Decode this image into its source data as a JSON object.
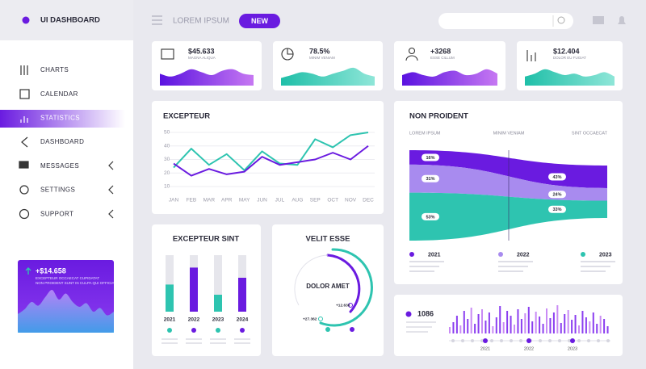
{
  "sidebar": {
    "title": "UI DASHBOARD",
    "menu": [
      "CHARTS",
      "CALENDAR",
      "STATISTICS",
      "DASHBOARD",
      "MESSAGES",
      "SETTINGS",
      "SUPPORT"
    ],
    "promo": {
      "value": "+$14.658",
      "lines": [
        "EXCEPTEUR OCCAECAT CUPIDATAT",
        "NON PROIDENT SUNT IN CULPA QUI OFFICIA"
      ],
      "area": [
        10,
        14,
        20,
        17,
        24,
        30,
        22,
        27,
        20,
        16,
        19,
        12,
        15,
        9,
        12
      ]
    }
  },
  "topbar": {
    "label": "LOREM IPSUM",
    "button": "NEW"
  },
  "stats": [
    {
      "value": "$45.633",
      "label": "MAGNA ALIQUA",
      "wave": [
        6,
        4,
        6,
        9,
        7,
        5,
        8,
        9,
        6,
        5
      ]
    },
    {
      "value": "78.5%",
      "label": "MINIM VENIAM",
      "wave": [
        3,
        5,
        7,
        6,
        4,
        6,
        8,
        10,
        6,
        4
      ]
    },
    {
      "value": "+3268",
      "label": "ESSE CILLUM",
      "wave": [
        5,
        7,
        5,
        4,
        7,
        8,
        5,
        6,
        9,
        6
      ]
    },
    {
      "value": "$12.404",
      "label": "DOLOR EU FUGIAT",
      "wave": [
        4,
        6,
        9,
        7,
        5,
        6,
        4,
        5,
        7,
        4
      ]
    }
  ],
  "line_chart": {
    "title": "EXCEPTEUR",
    "categories": [
      "JAN",
      "FEB",
      "MAR",
      "APR",
      "MAY",
      "JUN",
      "JUL",
      "AUG",
      "SEP",
      "OCT",
      "NOV",
      "DEC"
    ],
    "ylim": [
      10,
      50
    ],
    "yticks": [
      50,
      40,
      30,
      20,
      10
    ],
    "series": [
      {
        "color": "#2ec4b0",
        "values": [
          24,
          38,
          26,
          34,
          22,
          36,
          27,
          26,
          45,
          39,
          48,
          50
        ]
      },
      {
        "color": "#6a1be0",
        "values": [
          27,
          18,
          23,
          19,
          21,
          32,
          26,
          28,
          30,
          35,
          30,
          40
        ]
      }
    ]
  },
  "stream": {
    "title": "NON PROIDENT",
    "columns": [
      "LOREM IPSUM",
      "MINIM VENIAM",
      "SINT OCCAECAT"
    ],
    "series": [
      {
        "name": "2021",
        "color": "#6a1be0",
        "values": [
          16,
          43
        ],
        "value_labels": [
          "16%",
          "43%"
        ]
      },
      {
        "name": "2022",
        "color": "#a88bef",
        "values": [
          31,
          24
        ],
        "value_labels": [
          "31%",
          "24%"
        ]
      },
      {
        "name": "2023",
        "color": "#2ec4b0",
        "values": [
          53,
          33
        ],
        "value_labels": [
          "53%",
          "33%"
        ]
      }
    ]
  },
  "bar_card": {
    "title": "EXCEPTEUR SINT",
    "categories": [
      "2021",
      "2022",
      "2023",
      "2024"
    ],
    "values": [
      48,
      78,
      30,
      60
    ],
    "colors": [
      "#2ec4b0",
      "#6a1be0",
      "#2ec4b0",
      "#6a1be0"
    ]
  },
  "donut": {
    "title": "VELIT ESSE",
    "center": "DOLOR AMET",
    "labels": [
      "+12.638",
      "+27.362"
    ]
  },
  "activity": {
    "value": "1086",
    "years": [
      "2021",
      "2022",
      "2023"
    ],
    "values": [
      8,
      14,
      22,
      10,
      28,
      18,
      32,
      12,
      24,
      30,
      16,
      26,
      9,
      20,
      34,
      14,
      28,
      22,
      11,
      30,
      18,
      25,
      33,
      15,
      27,
      21,
      12,
      31,
      19,
      26,
      35,
      13,
      24,
      29,
      17,
      23,
      10,
      28,
      20,
      15,
      26,
      12,
      22,
      18,
      9
    ]
  }
}
